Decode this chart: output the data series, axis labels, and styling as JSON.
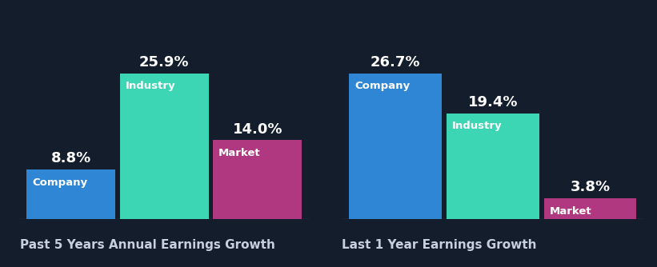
{
  "background_color": "#141d2b",
  "chart1": {
    "title": "Past 5 Years Annual Earnings Growth",
    "bars": [
      {
        "label": "Company",
        "value": 8.8,
        "color": "#2e86d4"
      },
      {
        "label": "Industry",
        "value": 25.9,
        "color": "#3dd6b5"
      },
      {
        "label": "Market",
        "value": 14.0,
        "color": "#b03880"
      }
    ]
  },
  "chart2": {
    "title": "Last 1 Year Earnings Growth",
    "bars": [
      {
        "label": "Company",
        "value": 26.7,
        "color": "#2e86d4"
      },
      {
        "label": "Industry",
        "value": 19.4,
        "color": "#3dd6b5"
      },
      {
        "label": "Market",
        "value": 3.8,
        "color": "#b03880"
      }
    ]
  },
  "text_color": "#ffffff",
  "title_color": "#c8d0e0",
  "label_fontsize": 9.5,
  "value_fontsize": 13,
  "title_fontsize": 11
}
